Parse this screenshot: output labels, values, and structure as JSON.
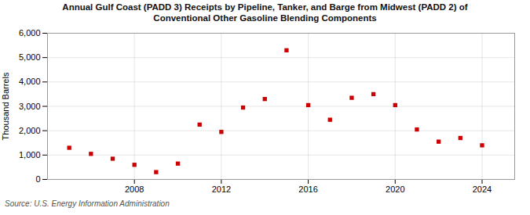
{
  "chart_data": {
    "type": "scatter",
    "title": "Annual Gulf Coast (PADD 3) Receipts by Pipeline, Tanker, and Barge from Midwest (PADD 2) of\nConventional Other Gasoline Blending Components",
    "ylabel": "Thousand Barrels",
    "source": "Source: U.S. Energy Information Administration",
    "x": [
      2005,
      2006,
      2007,
      2008,
      2009,
      2010,
      2011,
      2012,
      2013,
      2014,
      2015,
      2016,
      2017,
      2018,
      2019,
      2020,
      2021,
      2022,
      2023,
      2024
    ],
    "values": [
      1300,
      1050,
      850,
      600,
      300,
      650,
      2250,
      1950,
      2950,
      3300,
      5300,
      3050,
      2450,
      3350,
      3500,
      3050,
      2050,
      1550,
      1700,
      1400
    ],
    "color": "#cc0000",
    "marker": "square",
    "xlim": [
      2004,
      2025.5
    ],
    "xticks": [
      2008,
      2012,
      2016,
      2020,
      2024
    ],
    "ylim": [
      0,
      6000
    ],
    "yticks": [
      0,
      {
        "value": 1000,
        "label": "1,000"
      },
      {
        "value": 2000,
        "label": "2,000"
      },
      {
        "value": 3000,
        "label": "3,000"
      },
      {
        "value": 4000,
        "label": "4,000"
      },
      {
        "value": 5000,
        "label": "5,000"
      },
      {
        "value": 6000,
        "label": "6,000"
      }
    ],
    "grid": true
  }
}
